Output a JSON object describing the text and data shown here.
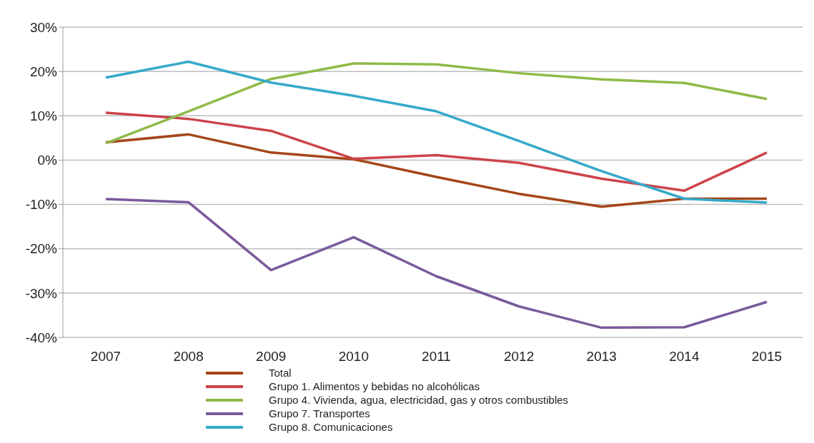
{
  "chart_data": {
    "type": "line",
    "categories": [
      "2007",
      "2008",
      "2009",
      "2010",
      "2011",
      "2012",
      "2013",
      "2014",
      "2015"
    ],
    "series": [
      {
        "name": "Total",
        "color": "#a5461a",
        "values": [
          4,
          5.8,
          1.7,
          0.2,
          -3.8,
          -7.6,
          -10.5,
          -8.7,
          -8.7
        ]
      },
      {
        "name": "Grupo 1. Alimentos y bebidas no alcohólicas",
        "color": "#cc444b",
        "values": [
          10.7,
          9.3,
          6.6,
          0.3,
          1.1,
          -0.6,
          -4.2,
          -6.9,
          1.7
        ]
      },
      {
        "name": "Grupo 4. Vivienda, agua, electricidad, gas y otros combustibles",
        "color": "#8fba48",
        "values": [
          3.8,
          11,
          18.3,
          21.8,
          21.6,
          19.6,
          18.2,
          17.4,
          13.8
        ]
      },
      {
        "name": "Grupo 7. Transportes",
        "color": "#7a5a9c",
        "values": [
          -8.8,
          -9.5,
          -24.8,
          -17.4,
          -26.2,
          -33,
          -37.8,
          -37.7,
          -32
        ]
      },
      {
        "name": "Grupo 8. Comunicaciones",
        "color": "#35a9c9",
        "values": [
          18.6,
          22.2,
          17.5,
          14.5,
          11,
          4.3,
          -2.5,
          -8.7,
          -9.6
        ]
      }
    ],
    "ylim": [
      -40,
      30
    ],
    "yticks": [
      {
        "value": -40,
        "label": "-40%"
      },
      {
        "value": -30,
        "label": "-30%"
      },
      {
        "value": -20,
        "label": "-20%"
      },
      {
        "value": -10,
        "label": "-10%"
      },
      {
        "value": 0,
        "label": "0%"
      },
      {
        "value": 10,
        "label": "10%"
      },
      {
        "value": 20,
        "label": "20%"
      },
      {
        "value": 30,
        "label": "30%"
      }
    ],
    "grid": "y",
    "legend": "bottom",
    "marker": "none",
    "line_style": "solid"
  }
}
